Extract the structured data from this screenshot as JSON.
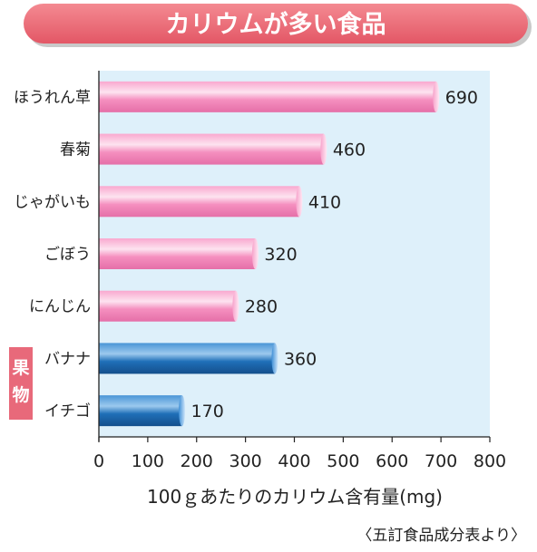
{
  "title": "カリウムが多い食品",
  "source": "〈五訂食品成分表より〉",
  "fruit_label": [
    "果",
    "物"
  ],
  "colors": {
    "title_bg": "#ee6f79",
    "plot_bg": "#def0fa",
    "vegetable_bar": "#f58fbf",
    "fruit_bar": "#1f6fb8",
    "fruit_tag": "#e8697a"
  },
  "chart_data": {
    "type": "bar",
    "orientation": "horizontal",
    "title": "カリウムが多い食品",
    "xlabel": "100ｇあたりのカリウム含有量(mg)",
    "ylabel": "",
    "xlim": [
      0,
      800
    ],
    "ticks": [
      "0",
      "100",
      "200",
      "300",
      "400",
      "500",
      "600",
      "700",
      "800"
    ],
    "grid": false,
    "categories": [
      "ほうれん草",
      "春菊",
      "じゃがいも",
      "ごぼう",
      "にんじん",
      "バナナ",
      "イチゴ"
    ],
    "values": [
      690,
      460,
      410,
      320,
      280,
      360,
      170
    ],
    "groups": [
      "vegetable",
      "vegetable",
      "vegetable",
      "vegetable",
      "vegetable",
      "fruit",
      "fruit"
    ]
  }
}
